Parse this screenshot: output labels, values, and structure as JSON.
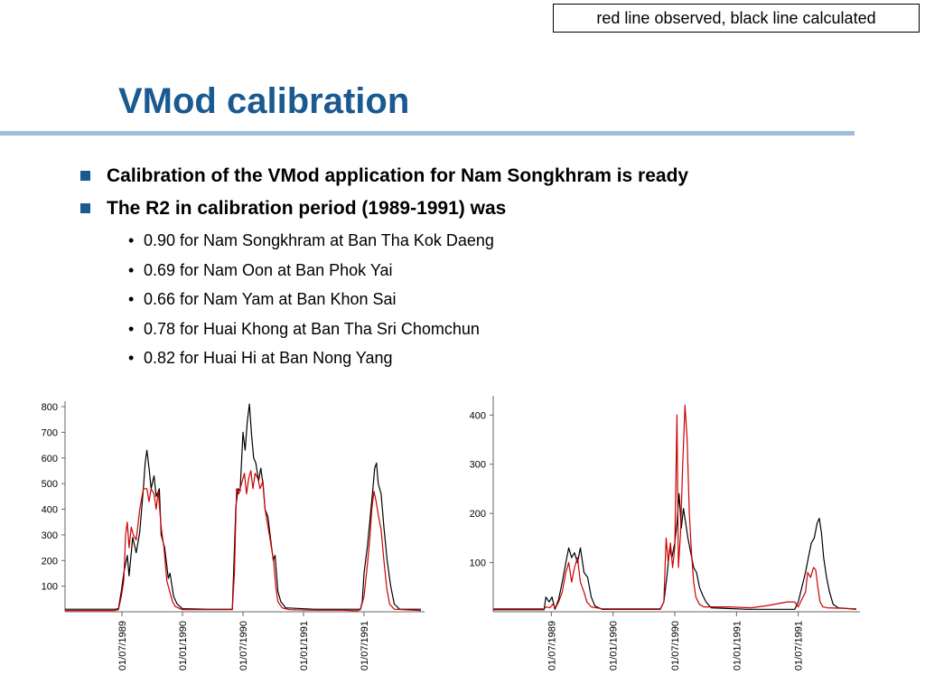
{
  "note": "red line observed, black line calculated",
  "title": "VMod calibration",
  "bullets": [
    "Calibration of the VMod application for Nam Songkhram is ready",
    "The R2 in calibration period (1989-1991) was"
  ],
  "sub_bullets": [
    "0.90 for Nam Songkhram at Ban Tha Kok Daeng",
    "0.69 for Nam Oon at Ban Phok Yai",
    "0.66 for Nam Yam at Ban Khon Sai",
    "0.78 for Huai Khong at Ban Tha Sri Chomchun",
    "0.82 for Huai Hi at Ban Nong Yang"
  ],
  "colors": {
    "title": "#1a5a90",
    "rule": "#9dbddf",
    "observed": "#cc0000",
    "calculated": "#000000"
  },
  "chart_data": [
    {
      "type": "line",
      "ylim": [
        0,
        800
      ],
      "yticks": [
        100,
        200,
        300,
        400,
        500,
        600,
        700,
        800
      ],
      "xlim": [
        0,
        100
      ],
      "xticks": [
        {
          "x": 16,
          "label": "01/07/1989"
        },
        {
          "x": 33,
          "label": "01/01/1990"
        },
        {
          "x": 50,
          "label": "01/07/1990"
        },
        {
          "x": 67,
          "label": "01/01/1991"
        },
        {
          "x": 84,
          "label": "01/07/1991"
        }
      ],
      "series": [
        {
          "color": "#000000",
          "points": [
            [
              0,
              10
            ],
            [
              14,
              10
            ],
            [
              15,
              12
            ],
            [
              15.8,
              80
            ],
            [
              16.5,
              150
            ],
            [
              17.5,
              220
            ],
            [
              18,
              140
            ],
            [
              19,
              290
            ],
            [
              20,
              230
            ],
            [
              21,
              310
            ],
            [
              22,
              480
            ],
            [
              22.5,
              580
            ],
            [
              23,
              630
            ],
            [
              23.6,
              560
            ],
            [
              24.2,
              480
            ],
            [
              25,
              530
            ],
            [
              25.6,
              450
            ],
            [
              26.5,
              480
            ],
            [
              27,
              300
            ],
            [
              28,
              250
            ],
            [
              29,
              130
            ],
            [
              29.5,
              150
            ],
            [
              30.5,
              60
            ],
            [
              31.5,
              30
            ],
            [
              33,
              12
            ],
            [
              40,
              10
            ],
            [
              47,
              10
            ],
            [
              47.5,
              200
            ],
            [
              48,
              410
            ],
            [
              48.6,
              480
            ],
            [
              49.2,
              470
            ],
            [
              50,
              700
            ],
            [
              50.6,
              630
            ],
            [
              51.2,
              740
            ],
            [
              51.8,
              810
            ],
            [
              52.4,
              690
            ],
            [
              53,
              600
            ],
            [
              53.6,
              580
            ],
            [
              54.4,
              510
            ],
            [
              55,
              560
            ],
            [
              55.6,
              500
            ],
            [
              56.2,
              400
            ],
            [
              57,
              370
            ],
            [
              57.8,
              280
            ],
            [
              58.5,
              200
            ],
            [
              59,
              220
            ],
            [
              59.8,
              80
            ],
            [
              60.6,
              40
            ],
            [
              62,
              15
            ],
            [
              70,
              10
            ],
            [
              83,
              10
            ],
            [
              83.5,
              40
            ],
            [
              84,
              150
            ],
            [
              85,
              260
            ],
            [
              85.8,
              380
            ],
            [
              86.5,
              480
            ],
            [
              87,
              560
            ],
            [
              87.5,
              580
            ],
            [
              88,
              500
            ],
            [
              88.8,
              460
            ],
            [
              89.6,
              330
            ],
            [
              90.5,
              200
            ],
            [
              91.5,
              100
            ],
            [
              92.5,
              30
            ],
            [
              94,
              10
            ],
            [
              100,
              10
            ]
          ]
        },
        {
          "color": "#cc0000",
          "points": [
            [
              0,
              5
            ],
            [
              14,
              5
            ],
            [
              15,
              8
            ],
            [
              15.8,
              60
            ],
            [
              16.5,
              120
            ],
            [
              17,
              300
            ],
            [
              17.5,
              350
            ],
            [
              18,
              250
            ],
            [
              18.6,
              330
            ],
            [
              19.2,
              300
            ],
            [
              20,
              280
            ],
            [
              21,
              400
            ],
            [
              22,
              480
            ],
            [
              23,
              480
            ],
            [
              23.6,
              430
            ],
            [
              24.2,
              480
            ],
            [
              25,
              460
            ],
            [
              25.6,
              400
            ],
            [
              26.2,
              470
            ],
            [
              27,
              330
            ],
            [
              27.8,
              250
            ],
            [
              28.6,
              120
            ],
            [
              29.4,
              80
            ],
            [
              30.2,
              40
            ],
            [
              31,
              20
            ],
            [
              33,
              8
            ],
            [
              47,
              8
            ],
            [
              47.6,
              150
            ],
            [
              48.2,
              480
            ],
            [
              48.8,
              460
            ],
            [
              49.6,
              500
            ],
            [
              50.4,
              540
            ],
            [
              51,
              460
            ],
            [
              51.6,
              520
            ],
            [
              52.2,
              550
            ],
            [
              52.8,
              480
            ],
            [
              53.4,
              540
            ],
            [
              54.2,
              520
            ],
            [
              54.8,
              480
            ],
            [
              55.6,
              510
            ],
            [
              56.2,
              400
            ],
            [
              56.8,
              350
            ],
            [
              57.4,
              300
            ],
            [
              58,
              250
            ],
            [
              58.6,
              200
            ],
            [
              59.2,
              100
            ],
            [
              59.8,
              40
            ],
            [
              61,
              15
            ],
            [
              63,
              8
            ],
            [
              70,
              6
            ],
            [
              78,
              6
            ],
            [
              82,
              4
            ],
            [
              83,
              8
            ],
            [
              84,
              60
            ],
            [
              85,
              190
            ],
            [
              85.6,
              280
            ],
            [
              86.2,
              400
            ],
            [
              86.8,
              470
            ],
            [
              87.4,
              430
            ],
            [
              88,
              380
            ],
            [
              88.8,
              320
            ],
            [
              89.6,
              200
            ],
            [
              90.4,
              90
            ],
            [
              91.2,
              30
            ],
            [
              92.5,
              10
            ],
            [
              100,
              5
            ]
          ]
        }
      ]
    },
    {
      "type": "line",
      "ylim": [
        0,
        430
      ],
      "yticks": [
        100,
        200,
        300,
        400
      ],
      "xlim": [
        0,
        100
      ],
      "xticks": [
        {
          "x": 16,
          "label": "01/07/1989"
        },
        {
          "x": 33,
          "label": "01/01/1990"
        },
        {
          "x": 50,
          "label": "01/07/1990"
        },
        {
          "x": 67,
          "label": "01/01/1991"
        },
        {
          "x": 84,
          "label": "01/07/1991"
        }
      ],
      "series": [
        {
          "color": "#000000",
          "points": [
            [
              0,
              4
            ],
            [
              14,
              4
            ],
            [
              14.5,
              30
            ],
            [
              15.4,
              20
            ],
            [
              16.2,
              30
            ],
            [
              17,
              5
            ],
            [
              18,
              25
            ],
            [
              19,
              60
            ],
            [
              20,
              100
            ],
            [
              20.8,
              130
            ],
            [
              21.6,
              110
            ],
            [
              22.4,
              120
            ],
            [
              23.2,
              100
            ],
            [
              24,
              130
            ],
            [
              25,
              80
            ],
            [
              26,
              70
            ],
            [
              27,
              30
            ],
            [
              28,
              12
            ],
            [
              30,
              5
            ],
            [
              46,
              5
            ],
            [
              47,
              20
            ],
            [
              47.8,
              70
            ],
            [
              48.6,
              130
            ],
            [
              49.2,
              110
            ],
            [
              50,
              140
            ],
            [
              50.6,
              180
            ],
            [
              51.2,
              240
            ],
            [
              51.8,
              170
            ],
            [
              52.4,
              210
            ],
            [
              53,
              180
            ],
            [
              53.6,
              150
            ],
            [
              54.4,
              120
            ],
            [
              55.2,
              90
            ],
            [
              56,
              80
            ],
            [
              56.8,
              50
            ],
            [
              57.6,
              35
            ],
            [
              58.6,
              20
            ],
            [
              60,
              8
            ],
            [
              70,
              5
            ],
            [
              83,
              5
            ],
            [
              84,
              20
            ],
            [
              85,
              50
            ],
            [
              86,
              80
            ],
            [
              86.8,
              110
            ],
            [
              87.6,
              140
            ],
            [
              88.4,
              150
            ],
            [
              89.2,
              180
            ],
            [
              89.8,
              190
            ],
            [
              90.4,
              160
            ],
            [
              91,
              110
            ],
            [
              91.8,
              70
            ],
            [
              92.6,
              40
            ],
            [
              93.6,
              15
            ],
            [
              95,
              8
            ],
            [
              100,
              5
            ]
          ]
        },
        {
          "color": "#cc0000",
          "points": [
            [
              0,
              6
            ],
            [
              14,
              6
            ],
            [
              14.6,
              10
            ],
            [
              15.6,
              8
            ],
            [
              16.4,
              15
            ],
            [
              17.2,
              8
            ],
            [
              18,
              20
            ],
            [
              19,
              40
            ],
            [
              20,
              80
            ],
            [
              20.8,
              100
            ],
            [
              21.6,
              60
            ],
            [
              22.4,
              90
            ],
            [
              23.2,
              110
            ],
            [
              24,
              60
            ],
            [
              25,
              40
            ],
            [
              25.8,
              20
            ],
            [
              27,
              10
            ],
            [
              30,
              6
            ],
            [
              46,
              6
            ],
            [
              47,
              20
            ],
            [
              47.6,
              150
            ],
            [
              48.2,
              100
            ],
            [
              48.8,
              140
            ],
            [
              49.4,
              90
            ],
            [
              50,
              130
            ],
            [
              50.6,
              400
            ],
            [
              51,
              90
            ],
            [
              51.6,
              160
            ],
            [
              52.2,
              300
            ],
            [
              52.8,
              420
            ],
            [
              53.4,
              350
            ],
            [
              54,
              200
            ],
            [
              54.6,
              120
            ],
            [
              55.2,
              60
            ],
            [
              55.8,
              30
            ],
            [
              56.8,
              15
            ],
            [
              58,
              10
            ],
            [
              65,
              10
            ],
            [
              71,
              8
            ],
            [
              75,
              12
            ],
            [
              81,
              20
            ],
            [
              83,
              20
            ],
            [
              84,
              10
            ],
            [
              85,
              25
            ],
            [
              86,
              40
            ],
            [
              86.6,
              80
            ],
            [
              87.4,
              70
            ],
            [
              88.2,
              90
            ],
            [
              88.8,
              85
            ],
            [
              89.4,
              50
            ],
            [
              90,
              20
            ],
            [
              90.8,
              10
            ],
            [
              92,
              8
            ],
            [
              100,
              6
            ]
          ]
        }
      ]
    }
  ]
}
